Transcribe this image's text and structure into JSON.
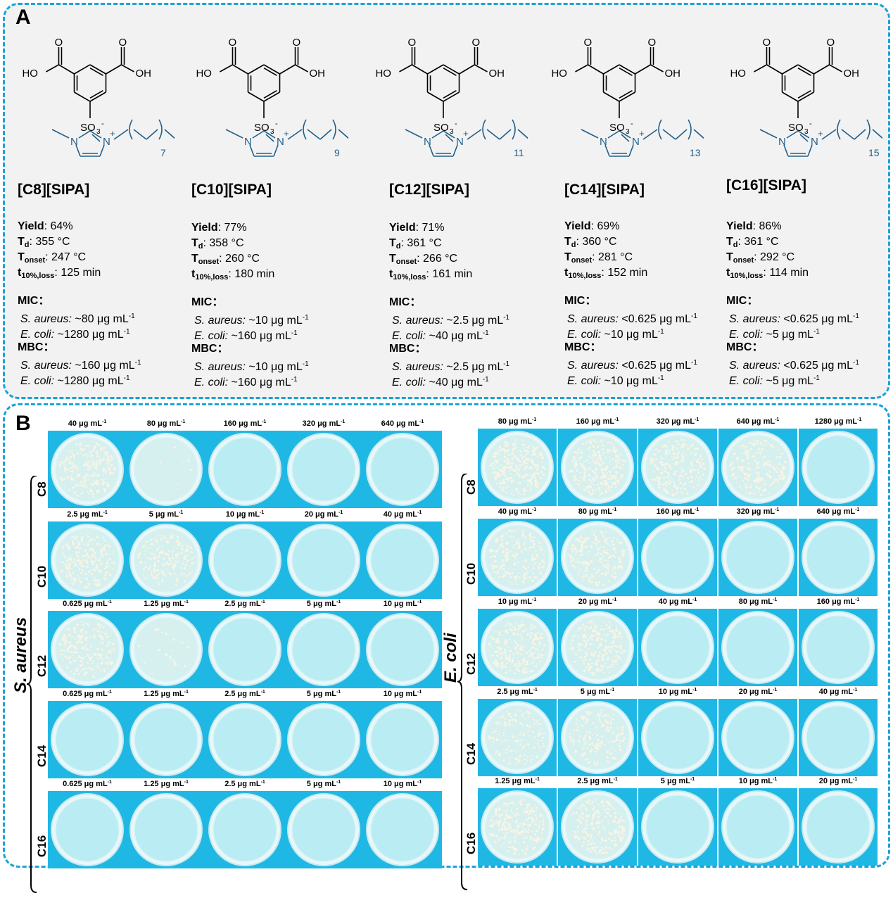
{
  "panelA": {
    "label": "A",
    "compounds": [
      {
        "name": "[C8][SIPA]",
        "chain": "7",
        "yield": "64%",
        "td": "355 °C",
        "tonset": "247 °C",
        "t10": "125 min",
        "mic_sa": "~80 μg mL",
        "mic_ec": "~1280 μg mL",
        "mbc_sa": "~160 μg mL",
        "mbc_ec": "~1280 μg mL"
      },
      {
        "name": "[C10][SIPA]",
        "chain": "9",
        "yield": "77%",
        "td": "358 °C",
        "tonset": "260 °C",
        "t10": "180 min",
        "mic_sa": "~10 μg mL",
        "mic_ec": "~160 μg mL",
        "mbc_sa": "~10 μg mL",
        "mbc_ec": "~160 μg mL"
      },
      {
        "name": "[C12][SIPA]",
        "chain": "11",
        "yield": "71%",
        "td": "361 °C",
        "tonset": "266 °C",
        "t10": "161 min",
        "mic_sa": "~2.5 μg mL",
        "mic_ec": "~40 μg mL",
        "mbc_sa": "~2.5 μg mL",
        "mbc_ec": "~40 μg mL"
      },
      {
        "name": "[C14][SIPA]",
        "chain": "13",
        "yield": "69%",
        "td": "360 °C",
        "tonset": "281 °C",
        "t10": "152 min",
        "mic_sa": "<0.625 μg mL",
        "mic_ec": "~10 μg mL",
        "mbc_sa": "<0.625 μg mL",
        "mbc_ec": "~10 μg mL"
      },
      {
        "name": "[C16][SIPA]",
        "chain": "15",
        "yield": "86%",
        "td": "361 °C",
        "tonset": "292 °C",
        "t10": "114 min",
        "mic_sa": "<0.625 μg mL",
        "mic_ec": "~5 μg mL",
        "mbc_sa": "<0.625 μg mL",
        "mbc_ec": "~5 μg mL"
      }
    ],
    "struct_text": {
      "ho": "HO",
      "oh": "OH",
      "o": "O",
      "so3": "SO",
      "n": "N",
      "plus": "+",
      "minus": "-",
      "three": "3"
    },
    "prop_labels": {
      "yield": "Yield",
      "td_main": "T",
      "td_sub": "d",
      "tonset_main": "T",
      "tonset_sub": "onset",
      "t10_main": "t",
      "t10_sub": "10%,loss",
      "mic": "MIC：",
      "mbc": "MBC：",
      "sa": "S. aureus:",
      "ec": "E. coli:",
      "unit_exp": "-1"
    }
  },
  "panelB": {
    "label": "B",
    "unit_exp": "-1",
    "left": {
      "organism": "S. aureus",
      "rows": [
        {
          "label": "C8",
          "concs": [
            "40 μg mL",
            "80 μg mL",
            "160 μg mL",
            "320 μg mL",
            "640 μg mL"
          ],
          "colonies": [
            230,
            8,
            0,
            0,
            0
          ]
        },
        {
          "label": "C10",
          "concs": [
            "2.5 μg mL",
            "5 μg mL",
            "10 μg mL",
            "20 μg mL",
            "40 μg mL"
          ],
          "colonies": [
            230,
            180,
            0,
            0,
            0
          ]
        },
        {
          "label": "C12",
          "concs": [
            "0.625 μg mL",
            "1.25 μg mL",
            "2.5 μg mL",
            "5 μg mL",
            "10 μg mL"
          ],
          "colonies": [
            200,
            22,
            0,
            0,
            0
          ]
        },
        {
          "label": "C14",
          "concs": [
            "0.625 μg mL",
            "1.25 μg mL",
            "2.5 μg mL",
            "5 μg mL",
            "10 μg mL"
          ],
          "colonies": [
            0,
            0,
            0,
            0,
            0
          ]
        },
        {
          "label": "C16",
          "concs": [
            "0.625 μg mL",
            "1.25 μg mL",
            "2.5 μg mL",
            "5 μg mL",
            "10 μg mL"
          ],
          "colonies": [
            0,
            0,
            0,
            0,
            0
          ]
        }
      ]
    },
    "right": {
      "organism": "E. coli",
      "rows": [
        {
          "label": "C8",
          "concs": [
            "80 μg mL",
            "160 μg mL",
            "320 μg mL",
            "640 μg mL",
            "1280 μg mL"
          ],
          "colonies": [
            260,
            260,
            220,
            200,
            0
          ]
        },
        {
          "label": "C10",
          "concs": [
            "40 μg mL",
            "80 μg mL",
            "160 μg mL",
            "320 μg mL",
            "640 μg mL"
          ],
          "colonies": [
            200,
            200,
            0,
            0,
            0
          ]
        },
        {
          "label": "C12",
          "concs": [
            "10 μg mL",
            "20 μg mL",
            "40 μg mL",
            "80 μg mL",
            "160 μg mL"
          ],
          "colonies": [
            230,
            220,
            0,
            0,
            0
          ]
        },
        {
          "label": "C14",
          "concs": [
            "2.5 μg mL",
            "5 μg mL",
            "10 μg mL",
            "20 μg mL",
            "40 μg mL"
          ],
          "colonies": [
            140,
            160,
            0,
            0,
            0
          ]
        },
        {
          "label": "C16",
          "concs": [
            "1.25 μg mL",
            "2.5 μg mL",
            "5 μg mL",
            "10 μg mL",
            "20 μg mL"
          ],
          "colonies": [
            260,
            220,
            0,
            0,
            0
          ]
        }
      ]
    }
  },
  "colors": {
    "border": "#1aa3d8",
    "plate_bg": "#1fb8e4",
    "structure_blue": "#1f5f8b"
  }
}
